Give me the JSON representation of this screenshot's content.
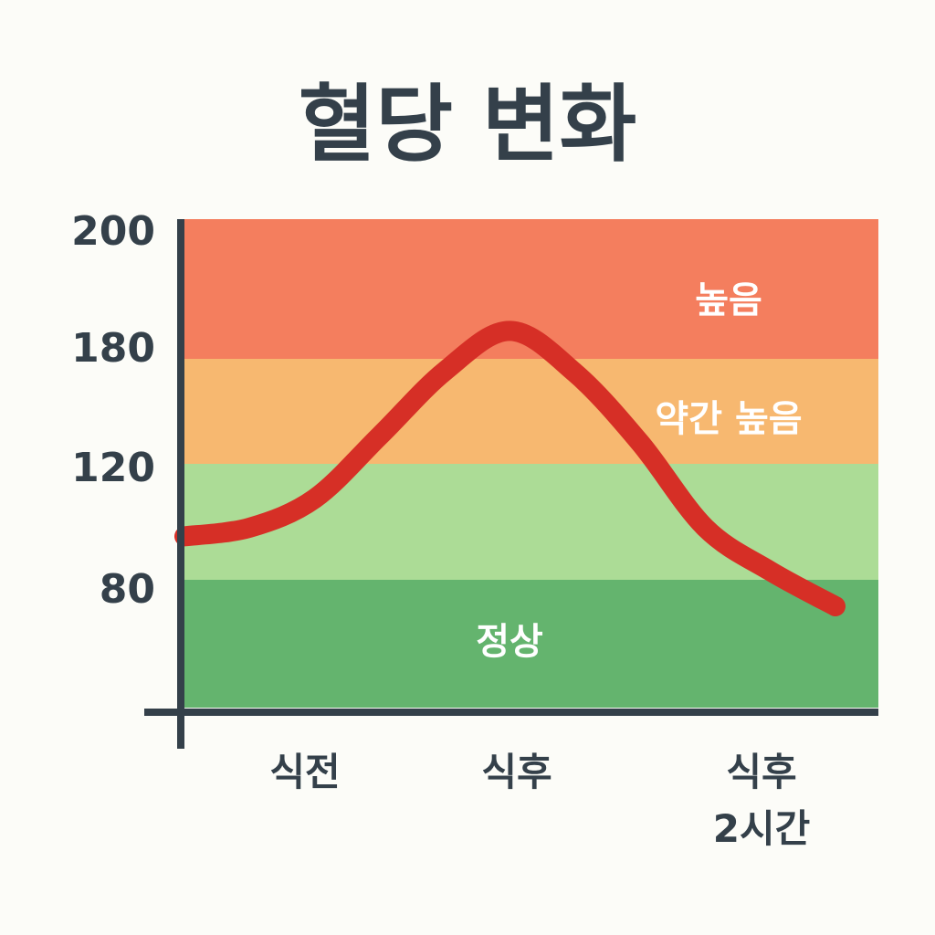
{
  "chart_data": {
    "type": "line",
    "title": "혈당 변화",
    "y_ticks": [
      "200",
      "180",
      "120",
      "80"
    ],
    "categories": [
      {
        "lines": [
          "식전"
        ]
      },
      {
        "lines": [
          "식후"
        ]
      },
      {
        "lines": [
          "식후",
          "2시간"
        ]
      }
    ],
    "zones": [
      {
        "label": "높음",
        "color": "#f47e5e"
      },
      {
        "label": "약간 높음",
        "color": "#f7b870"
      },
      {
        "label": "",
        "color": "#acdc96"
      },
      {
        "label": "정상",
        "color": "#64b46e"
      }
    ],
    "series": [
      {
        "color": "#d62f26",
        "points": [
          {
            "x": 0,
            "y": 95
          },
          {
            "x": 0.1,
            "y": 98
          },
          {
            "x": 0.2,
            "y": 108
          },
          {
            "x": 0.3,
            "y": 136
          },
          {
            "x": 0.4,
            "y": 173
          },
          {
            "x": 0.5,
            "y": 184
          },
          {
            "x": 0.6,
            "y": 172
          },
          {
            "x": 0.7,
            "y": 132
          },
          {
            "x": 0.8,
            "y": 98
          },
          {
            "x": 0.9,
            "y": 83
          },
          {
            "x": 1.0,
            "y": 76
          }
        ]
      }
    ],
    "axis_color": "#34404a",
    "grid": false
  }
}
